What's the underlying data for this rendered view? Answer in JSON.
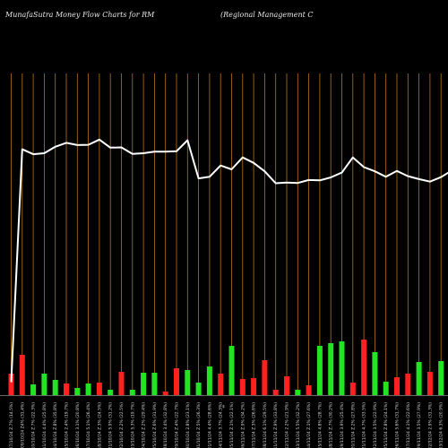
{
  "header": {
    "left_title": "MunafaSutra  Money Flow  Charts for RM",
    "right_title": "(Regional Management C"
  },
  "colors": {
    "background": "#000000",
    "grid": "#b8741a",
    "line": "#ffffff",
    "bar_up": "#22e422",
    "bar_down": "#ff2020",
    "axis": "#cfcfcf"
  },
  "chart_data": {
    "type": "bar",
    "grid": "vertical",
    "center_label": "$",
    "categories": [
      "07/10/24 Z.7% (14.5%)",
      "09/10/24 Z4% (31.4%)",
      "10/10/24 Z.7% (22.3%)",
      "11/10/24 4.4% (25.8%)",
      "14/10/24 Z.8% (35.8%)",
      "15/10/24 2.4% (19.7%)",
      "16/10/24 3.1% (20.8%)",
      "17/10/24 5.1% (26.4%)",
      "18/10/24 Z.3% (24.5%)",
      "21/10/24 5.9% (31.2%)",
      "22/10/24 Z.2% (22.5%)",
      "23/10/24 5.3% (19.7%)",
      "24/10/24 Z.2% (29.4%)",
      "25/10/24 Z.6% (31.9%)",
      "28/10/24 3.4% (32.8%)",
      "29/10/24 Z.4% (22.7%)",
      "30/10/24 2.8% (23.1%)",
      "31/10/24 Z.5% (26.3%)",
      "01/11/24 4.4% (28.6%)",
      "04/11/24 3.7% (24.3%)",
      "05/11/24 Z.1% (22.1%)",
      "06/11/24 Z.9% (34.2%)",
      "07/11/24 Z.3% (26.6%)",
      "08/11/24 6.1% (29.5%)",
      "11/11/24 Z.9% (33.8%)",
      "12/11/24 2.2% (21.9%)",
      "13/11/24 5.5% (32.2%)",
      "14/11/24 Z.1% (27.6%)",
      "15/11/24 4.8% (28.7%)",
      "18/11/24 Z.7% (30.2%)",
      "19/11/24 3.9% (25.4%)",
      "20/11/24 Z.2% (27.8%)",
      "21/11/24 4.7% (33.5%)",
      "22/11/24 3.5% (22.9%)",
      "25/11/24 Z.8% (24.1%)",
      "26/11/24 5.6% (31.7%)",
      "27/11/24 4.1% (22.6%)",
      "29/11/24 3.5% (27.9%)",
      "02/12/24 2.9% (31.3%)",
      "03/12/24 6.3% (20.9%)",
      "04/12/24 Z.5% (30.6%)"
    ],
    "bar_direction": [
      "down",
      "down",
      "up",
      "up",
      "up",
      "down",
      "up",
      "up",
      "down",
      "up",
      "down",
      "up",
      "up",
      "up",
      "down",
      "down",
      "up",
      "up",
      "up",
      "down",
      "up",
      "down",
      "down",
      "down",
      "down",
      "down",
      "up",
      "down",
      "up",
      "up",
      "up",
      "down",
      "down",
      "up",
      "up",
      "down",
      "down",
      "up",
      "down",
      "up",
      "up"
    ],
    "volume": [
      24,
      45,
      12,
      24,
      17,
      13,
      8,
      13,
      14,
      6,
      26,
      6,
      25,
      25,
      4,
      30,
      28,
      14,
      32,
      24,
      55,
      18,
      19,
      39,
      6,
      21,
      6,
      11,
      55,
      58,
      60,
      14,
      62,
      48,
      15,
      20,
      24,
      37,
      26,
      38,
      58
    ],
    "money_flow_line": [
      4,
      76,
      74.5,
      74.8,
      76.8,
      78,
      77.3,
      77.4,
      79,
      76.5,
      76.6,
      74.6,
      74.8,
      75.3,
      75.3,
      75.4,
      78.8,
      67,
      67.5,
      71,
      69.8,
      73.5,
      71.8,
      69.2,
      65.5,
      65.7,
      65.6,
      66.5,
      66.4,
      67.3,
      68.8,
      73.5,
      70.5,
      69.2,
      67.5,
      69.3,
      67.7,
      66.8,
      66,
      67.4,
      69.5
    ],
    "ylim": [
      0,
      100
    ]
  }
}
